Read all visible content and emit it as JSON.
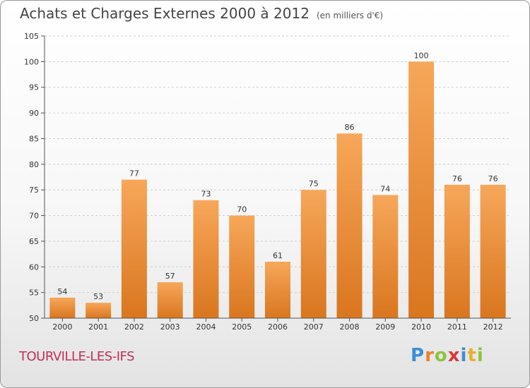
{
  "title": "Achats et Charges Externes 2000 à 2012",
  "unit": "(en milliers d'€)",
  "commune": "TOURVILLE-LES-IFS",
  "logo": {
    "text": "Proxiti",
    "letters": [
      {
        "ch": "P",
        "color": "#3a8fd6"
      },
      {
        "ch": "r",
        "color": "#e8832a"
      },
      {
        "ch": "o",
        "color": "#8cc43c"
      },
      {
        "ch": "x",
        "color": "#d63a3a"
      },
      {
        "ch": "i",
        "color": "#3a8fd6"
      },
      {
        "ch": "t",
        "color": "#e8b02a"
      },
      {
        "ch": "i",
        "color": "#8cc43c"
      }
    ]
  },
  "colors": {
    "bar_light": "#f7a75a",
    "bar_dark": "#d9761e",
    "grid": "#cfcfcf",
    "axis": "#555555"
  },
  "chart_data": {
    "type": "bar",
    "title": "Achats et Charges Externes 2000 à 2012",
    "ylabel": "(en milliers d'€)",
    "xlabel": "",
    "categories": [
      "2000",
      "2001",
      "2002",
      "2003",
      "2004",
      "2005",
      "2006",
      "2007",
      "2008",
      "2009",
      "2010",
      "2011",
      "2012"
    ],
    "values": [
      54,
      53,
      77,
      57,
      73,
      70,
      61,
      75,
      86,
      74,
      100,
      76,
      76
    ],
    "ylim": [
      50,
      105
    ],
    "yticks": [
      50,
      55,
      60,
      65,
      70,
      75,
      80,
      85,
      90,
      95,
      100,
      105
    ],
    "grid": true
  }
}
